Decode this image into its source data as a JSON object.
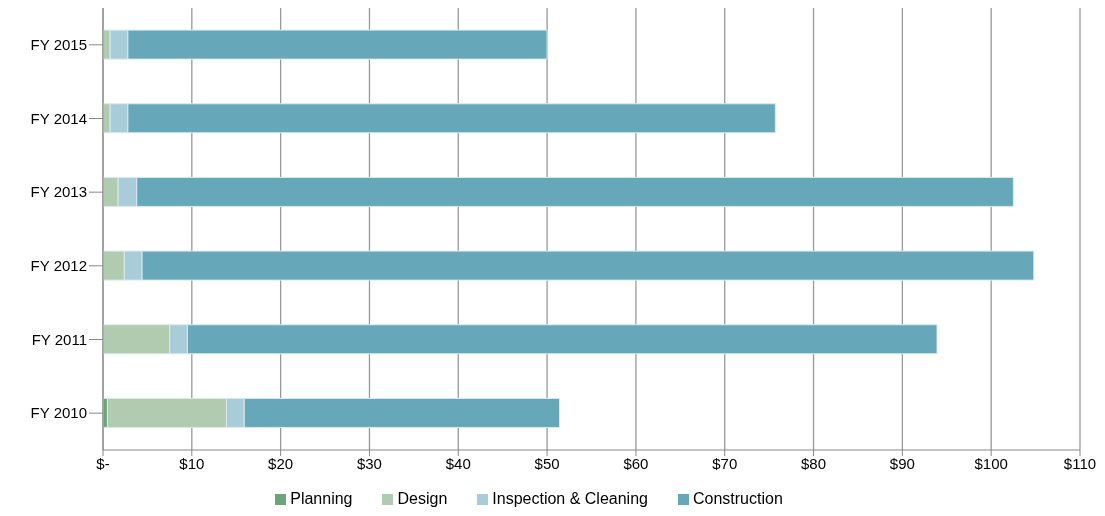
{
  "chart_data": {
    "type": "bar",
    "orientation": "horizontal",
    "stacked": true,
    "categories": [
      "FY 2015",
      "FY 2014",
      "FY 2013",
      "FY 2012",
      "FY 2011",
      "FY 2010"
    ],
    "series": [
      {
        "name": "Planning",
        "color": "#6aa67a",
        "values": [
          0,
          0,
          0,
          0,
          0,
          0.5
        ]
      },
      {
        "name": "Design",
        "color": "#b0cbb0",
        "values": [
          0.8,
          0.8,
          1.7,
          2.4,
          7.5,
          13.4
        ]
      },
      {
        "name": "Inspection & Cleaning",
        "color": "#a9cdd8",
        "values": [
          2.0,
          2.0,
          2.1,
          2.0,
          2.0,
          2.0
        ]
      },
      {
        "name": "Construction",
        "color": "#66a8ba",
        "values": [
          47.2,
          72.9,
          98.7,
          100.4,
          84.4,
          35.5
        ]
      }
    ],
    "xlim": [
      0,
      110
    ],
    "xticks": [
      {
        "value": 0,
        "label": "$-"
      },
      {
        "value": 10,
        "label": "$10"
      },
      {
        "value": 20,
        "label": "$20"
      },
      {
        "value": 30,
        "label": "$30"
      },
      {
        "value": 40,
        "label": "$40"
      },
      {
        "value": 50,
        "label": "$50"
      },
      {
        "value": 60,
        "label": "$60"
      },
      {
        "value": 70,
        "label": "$70"
      },
      {
        "value": 80,
        "label": "$80"
      },
      {
        "value": 90,
        "label": "$90"
      },
      {
        "value": 100,
        "label": "$100"
      },
      {
        "value": 110,
        "label": "$110"
      }
    ],
    "grid": "x",
    "legend": "bottom"
  }
}
